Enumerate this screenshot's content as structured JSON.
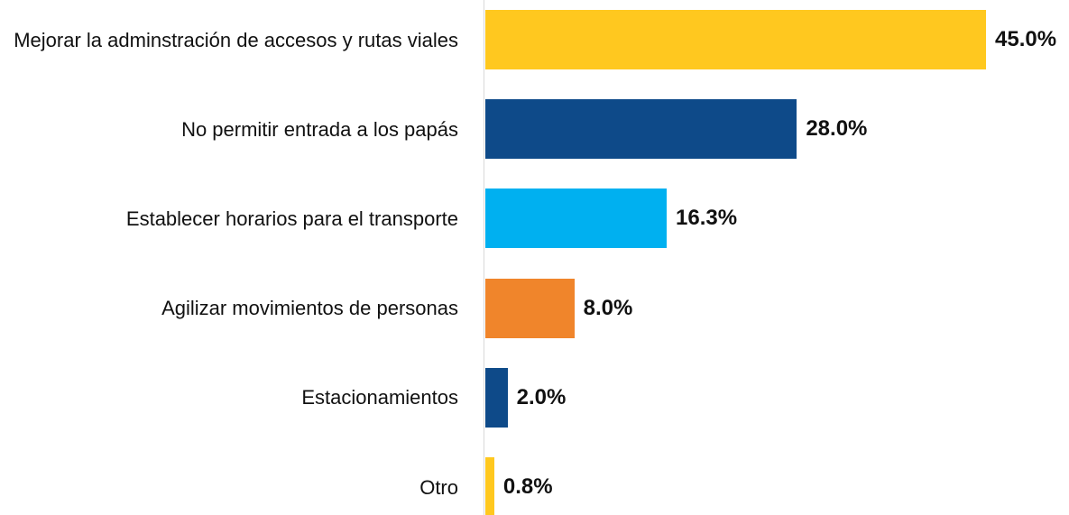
{
  "chart_data": {
    "type": "barh",
    "categories": [
      "Mejorar la adminstración de accesos y rutas viales",
      "No permitir entrada a los papás",
      "Establecer horarios para el transporte",
      "Agilizar movimientos de personas",
      "Estacionamientos",
      "Otro"
    ],
    "values": [
      45,
      28,
      16.3,
      8,
      2,
      0.8
    ],
    "value_labels": [
      "45.0%",
      "28.0%",
      "16.3%",
      "8.0%",
      "2.0%",
      "0.8%"
    ],
    "colors": [
      "#FFC81F",
      "#0E4A89",
      "#00B0F0",
      "#F0852B",
      "#0E4A89",
      "#FFC81F"
    ]
  }
}
